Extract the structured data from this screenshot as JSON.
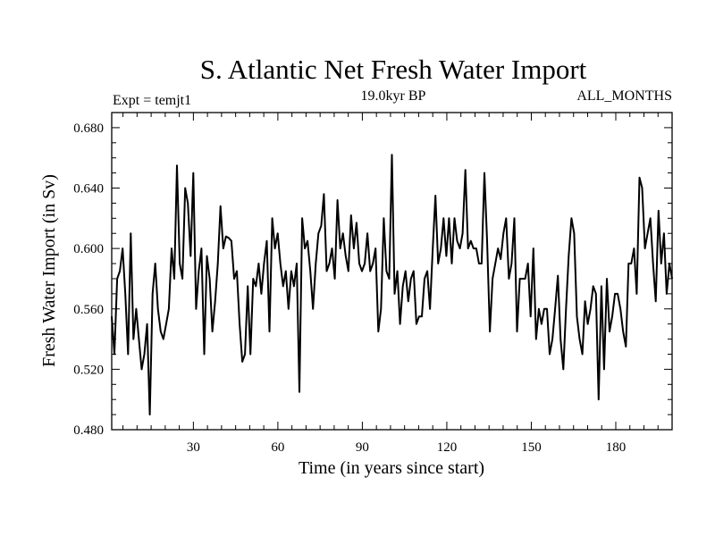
{
  "chart_data": {
    "type": "line",
    "title": "S. Atlantic Net Fresh Water Import",
    "subtitle_left": "Expt = temjt1",
    "subtitle_center": "19.0kyr BP",
    "subtitle_right": "ALL_MONTHS",
    "xlabel": "Time (in years since start)",
    "ylabel": "Fresh Water Import (in Sv)",
    "xlim": [
      1,
      200
    ],
    "ylim": [
      0.48,
      0.69
    ],
    "x_ticks": [
      30,
      60,
      90,
      120,
      150,
      180
    ],
    "x_tick_labels": [
      "30",
      "60",
      "90",
      "120",
      "150",
      "180"
    ],
    "y_ticks": [
      0.48,
      0.52,
      0.56,
      0.6,
      0.64,
      0.68
    ],
    "y_tick_labels": [
      "0.480",
      "0.520",
      "0.560",
      "0.600",
      "0.640",
      "0.680"
    ],
    "line_color": "#000000",
    "series": [
      {
        "name": "Net Fresh Water Import",
        "values": [
          0.555,
          0.53,
          0.58,
          0.585,
          0.6,
          0.57,
          0.53,
          0.61,
          0.54,
          0.56,
          0.54,
          0.52,
          0.53,
          0.55,
          0.49,
          0.57,
          0.59,
          0.56,
          0.545,
          0.54,
          0.55,
          0.56,
          0.6,
          0.58,
          0.655,
          0.59,
          0.58,
          0.64,
          0.63,
          0.595,
          0.65,
          0.56,
          0.585,
          0.6,
          0.53,
          0.595,
          0.58,
          0.545,
          0.565,
          0.59,
          0.628,
          0.6,
          0.608,
          0.607,
          0.605,
          0.58,
          0.585,
          0.55,
          0.525,
          0.53,
          0.575,
          0.53,
          0.58,
          0.575,
          0.59,
          0.57,
          0.59,
          0.605,
          0.545,
          0.62,
          0.6,
          0.61,
          0.59,
          0.575,
          0.585,
          0.56,
          0.585,
          0.575,
          0.59,
          0.505,
          0.62,
          0.6,
          0.605,
          0.585,
          0.56,
          0.59,
          0.61,
          0.615,
          0.636,
          0.585,
          0.59,
          0.6,
          0.58,
          0.632,
          0.6,
          0.61,
          0.595,
          0.585,
          0.622,
          0.6,
          0.617,
          0.59,
          0.585,
          0.59,
          0.61,
          0.585,
          0.59,
          0.6,
          0.545,
          0.56,
          0.62,
          0.585,
          0.58,
          0.662,
          0.57,
          0.585,
          0.55,
          0.575,
          0.585,
          0.565,
          0.58,
          0.585,
          0.55,
          0.555,
          0.555,
          0.58,
          0.585,
          0.56,
          0.6,
          0.635,
          0.59,
          0.6,
          0.62,
          0.595,
          0.62,
          0.59,
          0.62,
          0.605,
          0.6,
          0.61,
          0.652,
          0.6,
          0.605,
          0.6,
          0.6,
          0.59,
          0.59,
          0.65,
          0.605,
          0.545,
          0.58,
          0.59,
          0.6,
          0.593,
          0.61,
          0.62,
          0.58,
          0.59,
          0.62,
          0.545,
          0.58,
          0.58,
          0.58,
          0.59,
          0.555,
          0.6,
          0.54,
          0.56,
          0.55,
          0.56,
          0.56,
          0.53,
          0.54,
          0.56,
          0.582,
          0.54,
          0.52,
          0.56,
          0.595,
          0.62,
          0.61,
          0.555,
          0.54,
          0.53,
          0.565,
          0.55,
          0.56,
          0.575,
          0.57,
          0.5,
          0.575,
          0.52,
          0.58,
          0.545,
          0.555,
          0.57,
          0.57,
          0.56,
          0.545,
          0.535,
          0.59,
          0.59,
          0.6,
          0.57,
          0.647,
          0.64,
          0.6,
          0.61,
          0.62,
          0.59,
          0.565,
          0.625,
          0.59,
          0.61,
          0.57,
          0.59,
          0.58
        ]
      }
    ]
  }
}
